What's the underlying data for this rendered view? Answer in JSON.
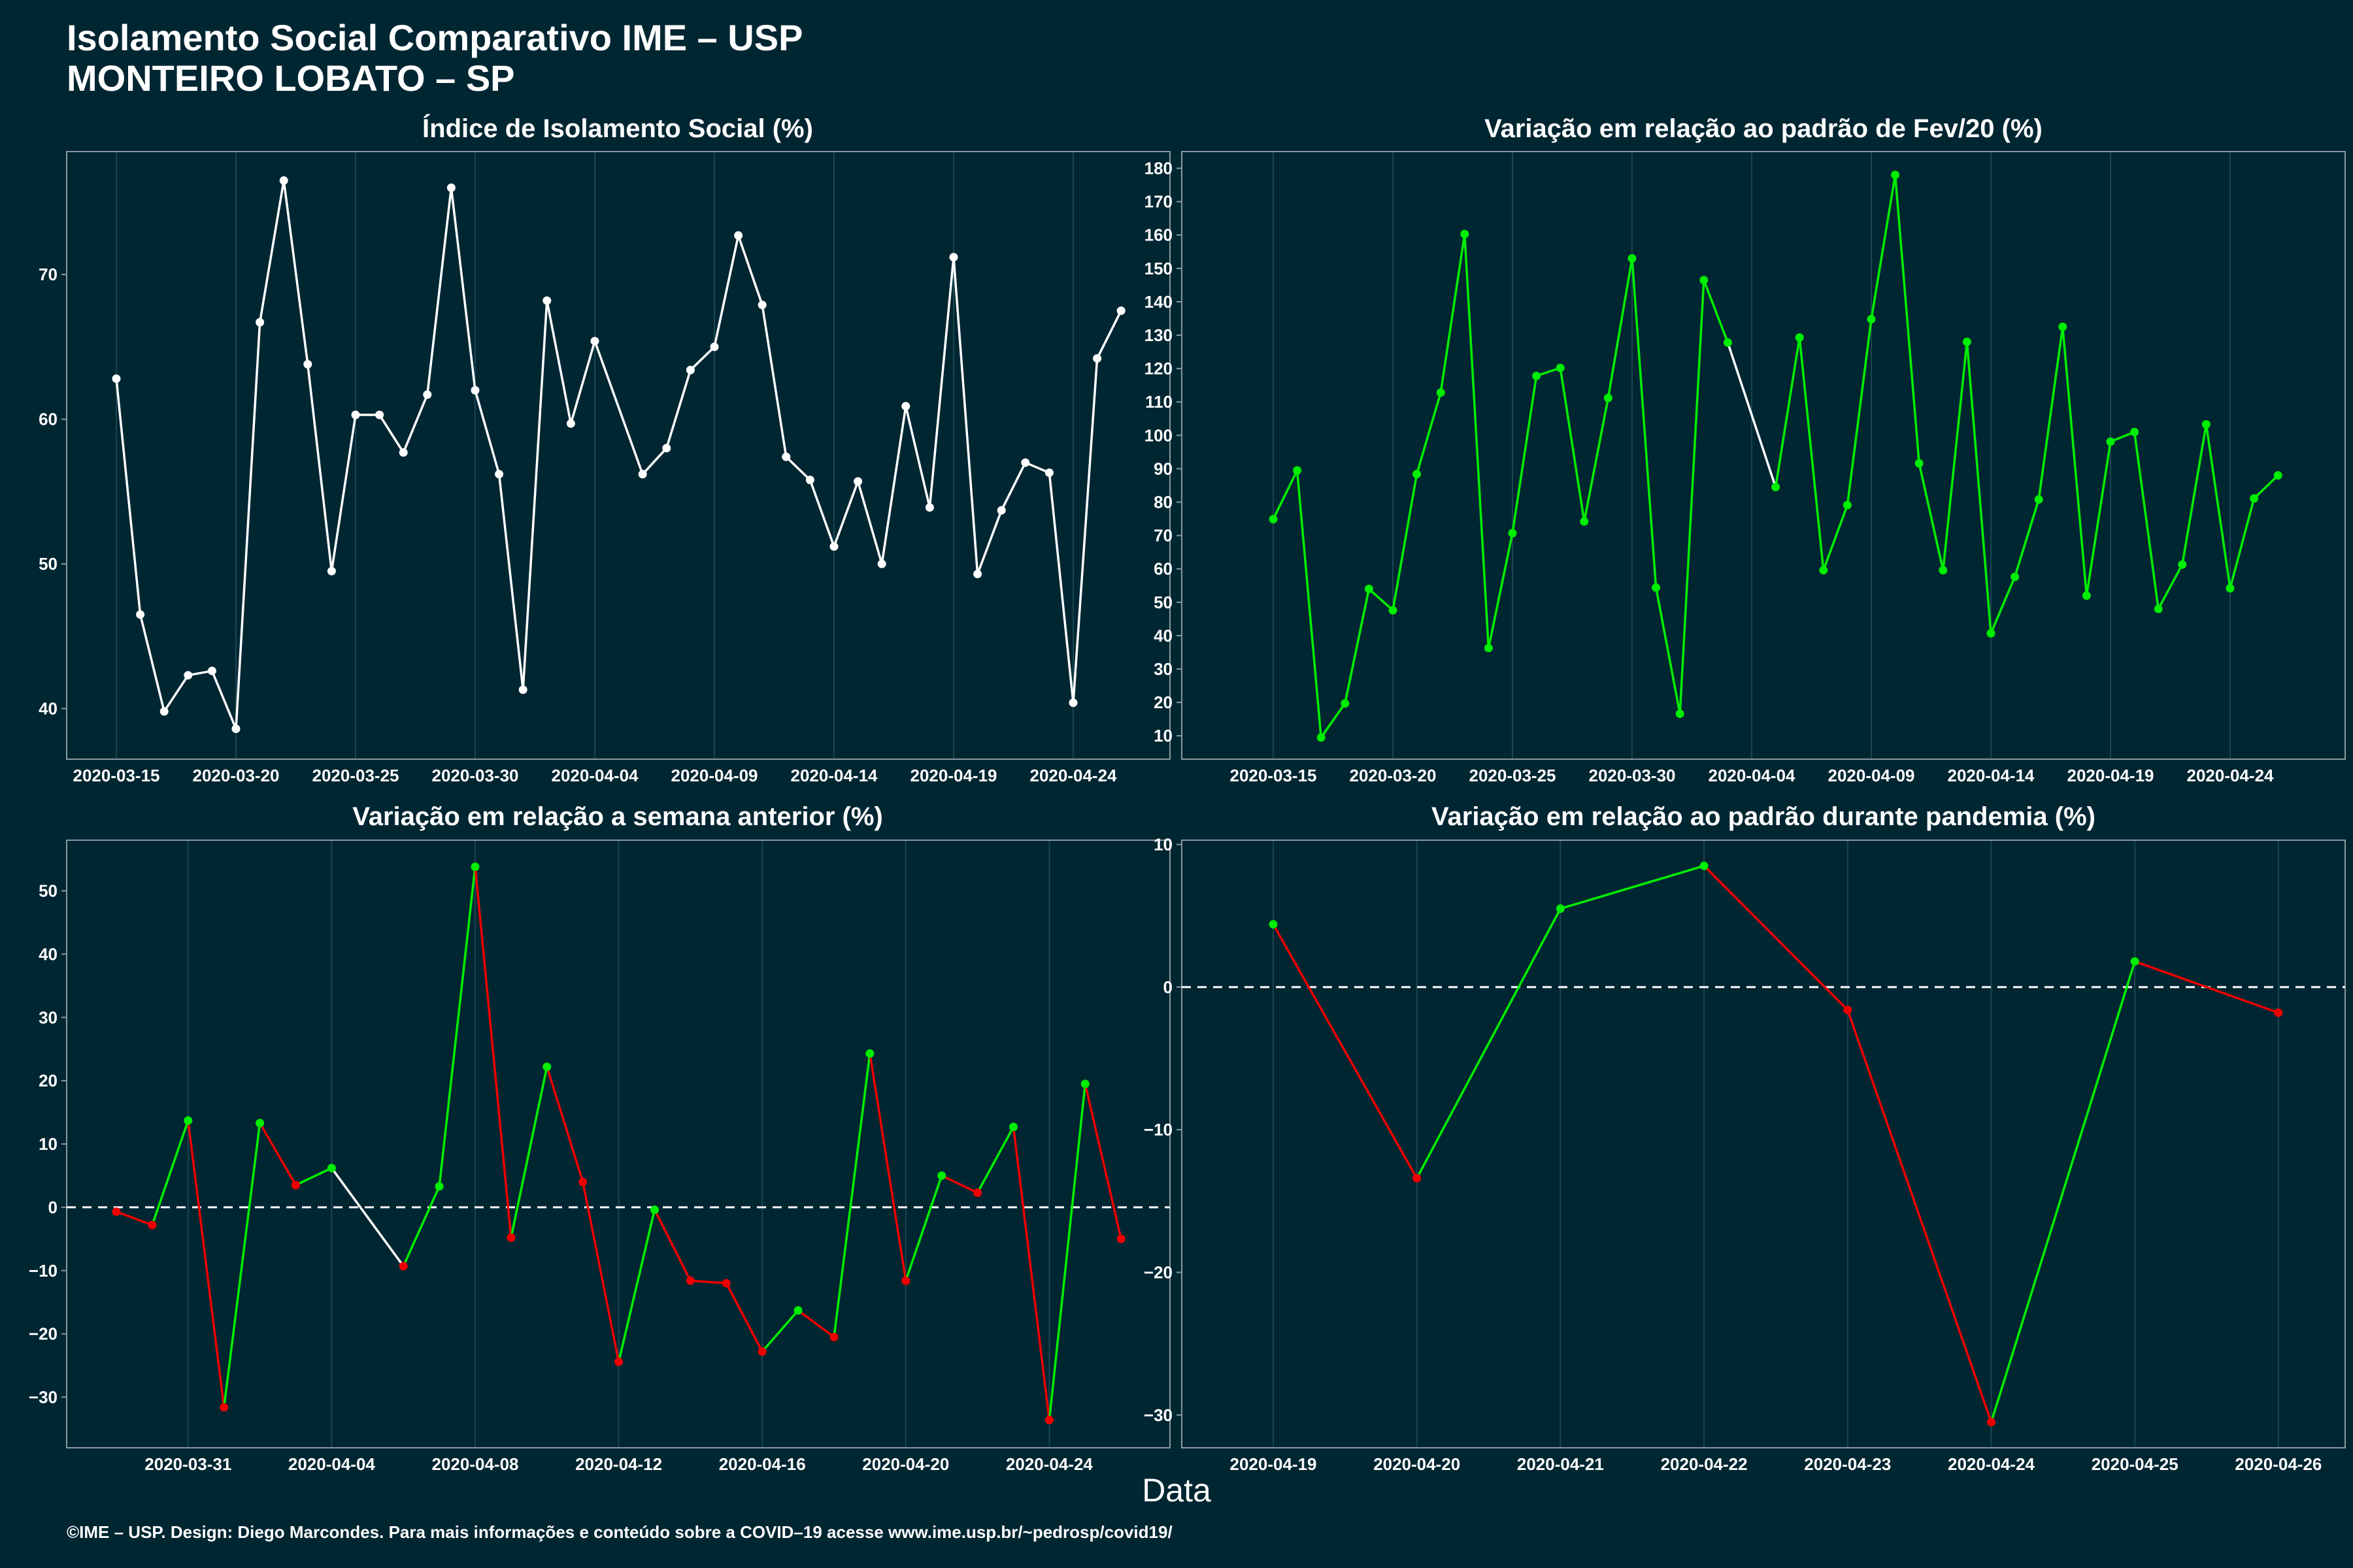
{
  "header": {
    "title_line1": "Isolamento Social Comparativo IME – USP",
    "title_line2": "MONTEIRO LOBATO – SP"
  },
  "x_caption": "Data",
  "footer": "©IME – USP. Design: Diego Marcondes. Para mais informações e conteúdo sobre a COVID–19 acesse www.ime.usp.br/~pedrosp/covid19/",
  "colors": {
    "background": "#002632",
    "increase": "#00ee00",
    "decrease": "#ee0000",
    "neutral": "#ffffff",
    "grid": "#1a4650"
  },
  "chart_data": [
    {
      "type": "line",
      "title": "Índice de Isolamento Social (%)",
      "x_start": "2020-03-15",
      "color_mode": "white",
      "ylim": [
        36.5,
        78.5
      ],
      "yticks": [
        40,
        50,
        60,
        70
      ],
      "xticks": [
        "2020-03-15",
        "2020-03-20",
        "2020-03-25",
        "2020-03-30",
        "2020-04-04",
        "2020-04-09",
        "2020-04-14",
        "2020-04-19",
        "2020-04-24"
      ],
      "values": [
        62.8,
        46.5,
        39.8,
        42.3,
        42.6,
        38.6,
        66.7,
        76.5,
        63.8,
        49.5,
        60.3,
        60.3,
        57.7,
        61.7,
        76.0,
        62.0,
        56.2,
        41.3,
        68.2,
        59.7,
        65.4,
        null,
        56.2,
        58.0,
        63.4,
        65.0,
        72.7,
        67.9,
        57.4,
        55.8,
        51.2,
        55.7,
        50.0,
        60.9,
        53.9,
        71.2,
        49.3,
        53.7,
        57.0,
        56.3,
        40.4,
        64.2,
        67.5
      ]
    },
    {
      "type": "line",
      "title": "Variação em relação ao padrão de Fev/20 (%)",
      "x_start": "2020-03-15",
      "color_mode": "trend",
      "ylim": [
        3,
        185
      ],
      "yticks": [
        10,
        20,
        30,
        40,
        50,
        60,
        70,
        80,
        90,
        100,
        110,
        120,
        130,
        140,
        150,
        160,
        170,
        180
      ],
      "xticks": [
        "2020-03-15",
        "2020-03-20",
        "2020-03-25",
        "2020-03-30",
        "2020-04-04",
        "2020-04-09",
        "2020-04-14",
        "2020-04-19",
        "2020-04-24"
      ],
      "values": [
        74.9,
        89.5,
        9.5,
        19.7,
        54.0,
        47.6,
        88.4,
        112.8,
        160.3,
        36.3,
        70.7,
        117.8,
        120.2,
        74.2,
        111.2,
        153.0,
        54.4,
        16.6,
        146.5,
        127.8,
        null,
        84.5,
        129.3,
        59.6,
        79.1,
        134.8,
        178.0,
        91.6,
        59.6,
        128.0,
        40.7,
        57.6,
        80.8,
        132.5,
        52.0,
        98.1,
        101.0,
        48.0,
        61.3,
        103.3,
        54.2,
        81.1,
        88.0
      ]
    },
    {
      "type": "line",
      "title": "Variação em relação a semana anterior (%)",
      "x_start": "2020-03-29",
      "color_mode": "sign",
      "ylim": [
        -38,
        58
      ],
      "yticks": [
        -30,
        -20,
        -10,
        0,
        10,
        20,
        30,
        40,
        50
      ],
      "xticks": [
        "2020-03-31",
        "2020-04-04",
        "2020-04-08",
        "2020-04-12",
        "2020-04-16",
        "2020-04-20",
        "2020-04-24"
      ],
      "zero_line": true,
      "values": [
        -0.7,
        -2.8,
        13.7,
        -31.6,
        13.3,
        3.5,
        6.2,
        null,
        -9.3,
        3.3,
        53.8,
        -4.8,
        22.2,
        4.0,
        -24.4,
        -0.4,
        -11.6,
        -12.0,
        -22.8,
        -16.3,
        -20.5,
        24.3,
        -11.6,
        5.0,
        2.3,
        12.7,
        -33.6,
        19.5,
        -5.0
      ]
    },
    {
      "type": "line",
      "title": "Variação em relação ao padrão durante pandemia (%)",
      "x_start": "2020-04-19",
      "color_mode": "sign",
      "ylim": [
        -32.3,
        10.3
      ],
      "yticks": [
        -30,
        -20,
        -10,
        0,
        10
      ],
      "xticks": [
        "2020-04-19",
        "2020-04-20",
        "2020-04-21",
        "2020-04-22",
        "2020-04-23",
        "2020-04-24",
        "2020-04-25",
        "2020-04-26"
      ],
      "zero_line": true,
      "values": [
        4.4,
        -13.4,
        5.5,
        8.5,
        -1.6,
        -30.5,
        1.8,
        -1.8
      ]
    }
  ]
}
